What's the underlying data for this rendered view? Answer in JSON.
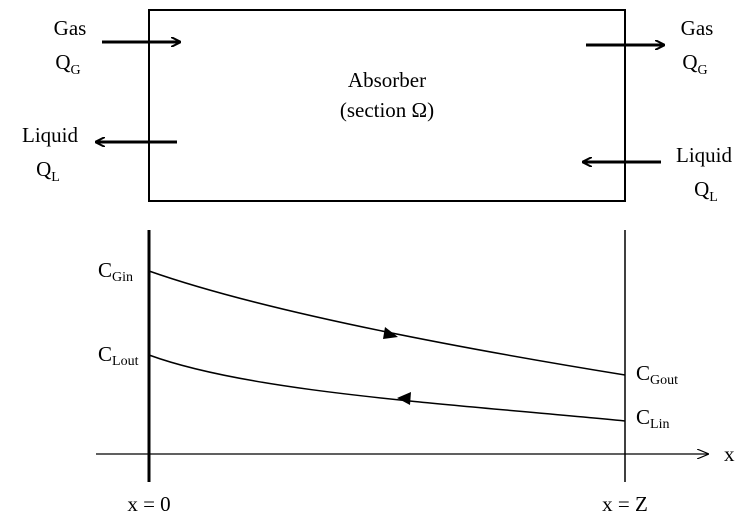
{
  "absorber": {
    "title": "Absorber",
    "subtitle": "(section Ω)"
  },
  "gas_in": {
    "name": "Gas",
    "flow_main": "Q",
    "flow_sub": "G"
  },
  "gas_out": {
    "name": "Gas",
    "flow_main": "Q",
    "flow_sub": "G"
  },
  "liquid_out": {
    "name": "Liquid",
    "flow_main": "Q",
    "flow_sub": "L"
  },
  "liquid_in": {
    "name": "Liquid",
    "flow_main": "Q",
    "flow_sub": "L"
  },
  "profile": {
    "gas_in_conc": {
      "main": "C",
      "sub": "Gin"
    },
    "liquid_out_conc": {
      "main": "C",
      "sub": "Lout"
    },
    "gas_out_conc": {
      "main": "C",
      "sub": "Gout"
    },
    "liquid_in_conc": {
      "main": "C",
      "sub": "Lin"
    },
    "x_axis_label": "x",
    "x_start_label": "x = 0",
    "x_end_label": "x = Z"
  }
}
